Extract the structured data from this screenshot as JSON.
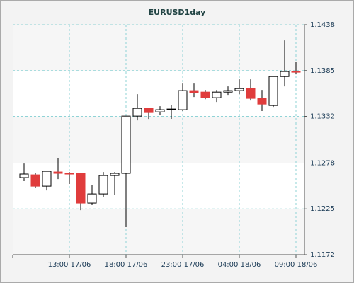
{
  "chart_data": {
    "type": "candlestick",
    "title": "EURUSD1day",
    "categories": [
      null,
      null,
      null,
      null,
      "13:00 17/06",
      null,
      null,
      null,
      null,
      "18:00 17/06",
      null,
      null,
      null,
      null,
      "23:00 17/06",
      null,
      null,
      null,
      null,
      "04:00 18/06",
      null,
      null,
      null,
      null,
      "09:00 18/06"
    ],
    "open": [
      1.12612,
      1.12644,
      1.12513,
      1.12677,
      1.12661,
      1.12661,
      1.12317,
      1.12423,
      1.12636,
      1.12661,
      1.13323,
      1.13413,
      1.13372,
      1.13397,
      1.13397,
      1.13618,
      1.13601,
      1.13536,
      1.13601,
      1.13618,
      1.13642,
      1.13528,
      1.13446,
      1.13781,
      1.13839
    ],
    "high": [
      1.12775,
      1.12661,
      1.12685,
      1.12841,
      1.12677,
      1.12669,
      1.12522,
      1.12677,
      1.12677,
      1.13323,
      1.13577,
      1.13413,
      1.13438,
      1.13454,
      1.137,
      1.137,
      1.13626,
      1.13626,
      1.13667,
      1.13749,
      1.13749,
      1.13626,
      1.13781,
      1.14199,
      1.13953
    ],
    "low": [
      1.12571,
      1.12489,
      1.12464,
      1.12595,
      1.12538,
      1.12235,
      1.12293,
      1.12391,
      1.12415,
      1.12039,
      1.13274,
      1.1329,
      1.1334,
      1.13291,
      1.13381,
      1.13544,
      1.13519,
      1.13487,
      1.13569,
      1.13577,
      1.13503,
      1.13381,
      1.1343,
      1.13667,
      1.13806
    ],
    "close": [
      1.12653,
      1.12513,
      1.12685,
      1.12661,
      1.12653,
      1.12317,
      1.12423,
      1.12636,
      1.12661,
      1.13323,
      1.13413,
      1.13364,
      1.13397,
      1.13405,
      1.13618,
      1.13593,
      1.13536,
      1.13601,
      1.13618,
      1.13642,
      1.13528,
      1.13462,
      1.13781,
      1.13839,
      1.13831
    ],
    "up_color": "#ffffff",
    "down_color": "#e03c3c",
    "ylim": [
      1.1172,
      1.1438
    ],
    "yticks": [
      1.1172,
      1.1225,
      1.1278,
      1.1332,
      1.1385,
      1.1438
    ],
    "grid": true
  }
}
